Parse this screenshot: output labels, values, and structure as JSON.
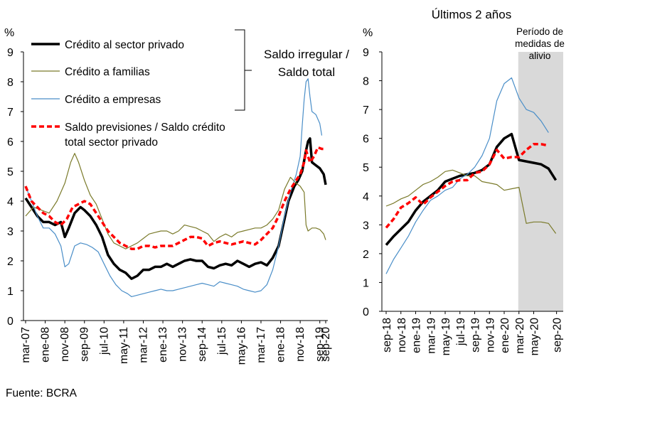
{
  "source": "Fuente: BCRA",
  "chart_data": [
    {
      "type": "line",
      "title": "",
      "ylabel": "%",
      "xlabel": "",
      "ylim": [
        0,
        9
      ],
      "yticks": [
        0,
        1,
        2,
        3,
        4,
        5,
        6,
        7,
        8,
        9
      ],
      "x_tick_labels": [
        "mar-07",
        "ene-08",
        "nov-08",
        "sep-09",
        "jul-10",
        "may-11",
        "mar-12",
        "ene-13",
        "nov-13",
        "sep-14",
        "jul-15",
        "may-16",
        "mar-17",
        "ene-18",
        "nov-18",
        "sep-19",
        "sep-20"
      ],
      "x_start": "mar-07",
      "x_end": "sep-20",
      "legend_bracket_label_line1": "Saldo irregular /",
      "legend_bracket_label_line2": "Saldo total",
      "series": [
        {
          "name": "Crédito al sector privado",
          "color": "#000000",
          "style": "solid-thick",
          "points": [
            [
              0,
              4.1
            ],
            [
              3,
              3.8
            ],
            [
              6,
              3.5
            ],
            [
              9,
              3.3
            ],
            [
              12,
              3.3
            ],
            [
              15,
              3.2
            ],
            [
              18,
              3.3
            ],
            [
              20,
              2.8
            ],
            [
              22,
              3.1
            ],
            [
              25,
              3.6
            ],
            [
              28,
              3.8
            ],
            [
              30,
              3.7
            ],
            [
              33,
              3.5
            ],
            [
              36,
              3.2
            ],
            [
              39,
              2.8
            ],
            [
              42,
              2.2
            ],
            [
              45,
              1.9
            ],
            [
              48,
              1.7
            ],
            [
              51,
              1.6
            ],
            [
              54,
              1.4
            ],
            [
              57,
              1.5
            ],
            [
              60,
              1.7
            ],
            [
              63,
              1.7
            ],
            [
              66,
              1.8
            ],
            [
              69,
              1.8
            ],
            [
              72,
              1.9
            ],
            [
              75,
              1.8
            ],
            [
              78,
              1.9
            ],
            [
              81,
              2.0
            ],
            [
              84,
              2.05
            ],
            [
              87,
              2.0
            ],
            [
              90,
              2.0
            ],
            [
              93,
              1.8
            ],
            [
              96,
              1.75
            ],
            [
              99,
              1.85
            ],
            [
              102,
              1.9
            ],
            [
              105,
              1.85
            ],
            [
              108,
              2.0
            ],
            [
              111,
              1.9
            ],
            [
              114,
              1.8
            ],
            [
              117,
              1.9
            ],
            [
              120,
              1.95
            ],
            [
              123,
              1.85
            ],
            [
              126,
              2.1
            ],
            [
              129,
              2.5
            ],
            [
              132,
              3.4
            ],
            [
              134,
              4.0
            ],
            [
              137,
              4.5
            ],
            [
              139,
              4.7
            ],
            [
              141,
              5.0
            ],
            [
              143,
              5.7
            ],
            [
              144,
              6.0
            ],
            [
              145,
              6.1
            ],
            [
              146,
              5.3
            ],
            [
              148,
              5.2
            ],
            [
              150,
              5.1
            ],
            [
              152,
              4.9
            ],
            [
              153,
              4.55
            ]
          ]
        },
        {
          "name": "Crédito a familias",
          "color": "#7a7a2a",
          "style": "solid-thin",
          "points": [
            [
              0,
              3.5
            ],
            [
              4,
              3.8
            ],
            [
              8,
              3.7
            ],
            [
              12,
              3.6
            ],
            [
              16,
              4.0
            ],
            [
              20,
              4.6
            ],
            [
              23,
              5.3
            ],
            [
              25,
              5.6
            ],
            [
              27,
              5.3
            ],
            [
              30,
              4.7
            ],
            [
              33,
              4.2
            ],
            [
              36,
              3.9
            ],
            [
              39,
              3.4
            ],
            [
              42,
              2.9
            ],
            [
              45,
              2.6
            ],
            [
              48,
              2.5
            ],
            [
              51,
              2.4
            ],
            [
              54,
              2.5
            ],
            [
              57,
              2.6
            ],
            [
              60,
              2.75
            ],
            [
              63,
              2.9
            ],
            [
              66,
              2.95
            ],
            [
              69,
              3.0
            ],
            [
              72,
              3.0
            ],
            [
              75,
              2.9
            ],
            [
              78,
              3.0
            ],
            [
              81,
              3.2
            ],
            [
              84,
              3.15
            ],
            [
              87,
              3.1
            ],
            [
              90,
              3.0
            ],
            [
              93,
              2.9
            ],
            [
              96,
              2.65
            ],
            [
              99,
              2.8
            ],
            [
              102,
              2.9
            ],
            [
              105,
              2.8
            ],
            [
              108,
              2.95
            ],
            [
              111,
              3.0
            ],
            [
              114,
              3.05
            ],
            [
              117,
              3.1
            ],
            [
              120,
              3.1
            ],
            [
              123,
              3.2
            ],
            [
              126,
              3.4
            ],
            [
              129,
              3.7
            ],
            [
              132,
              4.4
            ],
            [
              135,
              4.8
            ],
            [
              138,
              4.6
            ],
            [
              140,
              4.5
            ],
            [
              142,
              4.3
            ],
            [
              143,
              3.2
            ],
            [
              144,
              3.0
            ],
            [
              146,
              3.1
            ],
            [
              148,
              3.1
            ],
            [
              150,
              3.05
            ],
            [
              152,
              2.9
            ],
            [
              153,
              2.7
            ]
          ]
        },
        {
          "name": "Crédito a empresas",
          "color": "#4a8ec8",
          "style": "solid-thin",
          "points": [
            [
              0,
              4.5
            ],
            [
              3,
              4.0
            ],
            [
              6,
              3.5
            ],
            [
              9,
              3.1
            ],
            [
              12,
              3.1
            ],
            [
              15,
              2.9
            ],
            [
              18,
              2.5
            ],
            [
              20,
              1.8
            ],
            [
              22,
              1.9
            ],
            [
              25,
              2.5
            ],
            [
              28,
              2.6
            ],
            [
              31,
              2.55
            ],
            [
              34,
              2.45
            ],
            [
              37,
              2.3
            ],
            [
              40,
              1.9
            ],
            [
              43,
              1.5
            ],
            [
              46,
              1.2
            ],
            [
              49,
              1.0
            ],
            [
              52,
              0.9
            ],
            [
              54,
              0.8
            ],
            [
              57,
              0.85
            ],
            [
              60,
              0.9
            ],
            [
              63,
              0.95
            ],
            [
              66,
              1.0
            ],
            [
              69,
              1.05
            ],
            [
              72,
              1.0
            ],
            [
              75,
              1.0
            ],
            [
              78,
              1.05
            ],
            [
              81,
              1.1
            ],
            [
              84,
              1.15
            ],
            [
              87,
              1.2
            ],
            [
              90,
              1.25
            ],
            [
              93,
              1.2
            ],
            [
              96,
              1.15
            ],
            [
              99,
              1.3
            ],
            [
              102,
              1.25
            ],
            [
              105,
              1.2
            ],
            [
              108,
              1.15
            ],
            [
              111,
              1.05
            ],
            [
              114,
              1.0
            ],
            [
              117,
              0.95
            ],
            [
              120,
              1.0
            ],
            [
              123,
              1.2
            ],
            [
              126,
              1.7
            ],
            [
              129,
              2.5
            ],
            [
              132,
              3.5
            ],
            [
              135,
              4.3
            ],
            [
              138,
              4.9
            ],
            [
              140,
              5.5
            ],
            [
              141,
              6.5
            ],
            [
              142,
              7.4
            ],
            [
              143,
              8.0
            ],
            [
              144,
              8.1
            ],
            [
              145,
              7.5
            ],
            [
              146,
              7.0
            ],
            [
              148,
              6.9
            ],
            [
              150,
              6.6
            ],
            [
              151,
              6.2
            ]
          ]
        },
        {
          "name": "Saldo previsiones / Saldo crédito total sector privado",
          "color": "#ff0000",
          "style": "dashed-thick",
          "points": [
            [
              0,
              4.5
            ],
            [
              3,
              4.0
            ],
            [
              6,
              3.8
            ],
            [
              9,
              3.6
            ],
            [
              12,
              3.5
            ],
            [
              15,
              3.3
            ],
            [
              18,
              3.2
            ],
            [
              21,
              3.4
            ],
            [
              24,
              3.8
            ],
            [
              27,
              3.9
            ],
            [
              30,
              4.0
            ],
            [
              33,
              3.9
            ],
            [
              36,
              3.6
            ],
            [
              39,
              3.3
            ],
            [
              42,
              3.0
            ],
            [
              45,
              2.8
            ],
            [
              48,
              2.6
            ],
            [
              51,
              2.5
            ],
            [
              54,
              2.4
            ],
            [
              57,
              2.4
            ],
            [
              60,
              2.5
            ],
            [
              63,
              2.5
            ],
            [
              66,
              2.45
            ],
            [
              69,
              2.5
            ],
            [
              72,
              2.5
            ],
            [
              75,
              2.5
            ],
            [
              78,
              2.6
            ],
            [
              81,
              2.7
            ],
            [
              84,
              2.8
            ],
            [
              87,
              2.8
            ],
            [
              90,
              2.75
            ],
            [
              93,
              2.5
            ],
            [
              96,
              2.6
            ],
            [
              99,
              2.65
            ],
            [
              102,
              2.6
            ],
            [
              105,
              2.55
            ],
            [
              108,
              2.6
            ],
            [
              111,
              2.65
            ],
            [
              114,
              2.6
            ],
            [
              117,
              2.55
            ],
            [
              120,
              2.7
            ],
            [
              123,
              2.9
            ],
            [
              126,
              3.1
            ],
            [
              129,
              3.5
            ],
            [
              132,
              4.0
            ],
            [
              135,
              4.4
            ],
            [
              138,
              4.7
            ],
            [
              140,
              4.9
            ],
            [
              142,
              5.3
            ],
            [
              143,
              5.7
            ],
            [
              145,
              5.3
            ],
            [
              147,
              5.5
            ],
            [
              149,
              5.8
            ],
            [
              151,
              5.75
            ],
            [
              153,
              5.75
            ]
          ]
        }
      ]
    },
    {
      "type": "line",
      "title": "Últimos 2 años",
      "ylabel": "%",
      "xlabel": "",
      "ylim": [
        0,
        9
      ],
      "yticks": [
        0,
        1,
        2,
        3,
        4,
        5,
        6,
        7,
        8,
        9
      ],
      "x_tick_labels": [
        "sep-18",
        "nov-18",
        "ene-19",
        "mar-19",
        "may-19",
        "jul-19",
        "sep-19",
        "nov-19",
        "ene-20",
        "mar-20",
        "may-20",
        "sep-20"
      ],
      "x_start": "sep-18",
      "x_end": "sep-20",
      "shaded_period_label": "Período de medidas de alivio",
      "shaded_period_label_lines": [
        "Período de",
        "medidas de",
        "alivio"
      ],
      "shaded_period_start": 18,
      "shaded_period_end": 24,
      "series": [
        {
          "name": "Crédito al sector privado",
          "color": "#000000",
          "style": "solid-thick",
          "values": [
            2.3,
            2.6,
            2.85,
            3.1,
            3.5,
            3.8,
            4.0,
            4.2,
            4.5,
            4.6,
            4.7,
            4.75,
            4.8,
            4.9,
            5.1,
            5.7,
            6.0,
            6.15,
            5.25,
            5.2,
            5.15,
            5.1,
            4.95,
            4.55
          ]
        },
        {
          "name": "Crédito a familias",
          "color": "#7a7a2a",
          "style": "solid-thin",
          "values": [
            3.65,
            3.75,
            3.9,
            4.0,
            4.2,
            4.4,
            4.5,
            4.65,
            4.85,
            4.9,
            4.8,
            4.7,
            4.7,
            4.5,
            4.45,
            4.4,
            4.2,
            4.25,
            4.3,
            3.05,
            3.1,
            3.1,
            3.05,
            2.7
          ]
        },
        {
          "name": "Crédito a empresas",
          "color": "#4a8ec8",
          "style": "solid-thin",
          "values": [
            1.3,
            1.8,
            2.2,
            2.6,
            3.1,
            3.5,
            3.85,
            4.0,
            4.2,
            4.3,
            4.6,
            4.75,
            5.0,
            5.4,
            6.0,
            7.3,
            7.9,
            8.1,
            7.4,
            7.0,
            6.9,
            6.6,
            6.2
          ]
        },
        {
          "name": "Saldo previsiones / Saldo crédito total sector privado",
          "color": "#ff0000",
          "style": "dashed-thick",
          "values": [
            2.9,
            3.2,
            3.6,
            3.75,
            3.95,
            3.7,
            3.95,
            4.15,
            4.35,
            4.5,
            4.55,
            4.55,
            4.8,
            4.85,
            5.1,
            5.6,
            5.3,
            5.35,
            5.35,
            5.6,
            5.8,
            5.8,
            5.75
          ]
        }
      ]
    }
  ]
}
